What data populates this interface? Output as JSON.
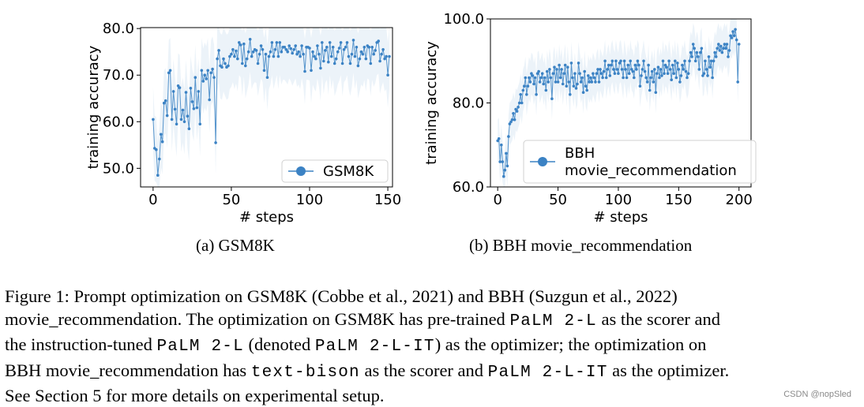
{
  "chart_data": [
    {
      "type": "line",
      "subcaption": "(a) GSM8K",
      "xlabel": "# steps",
      "ylabel": "training accuracy",
      "xlim": [
        -8,
        153
      ],
      "ylim": [
        46.0,
        80.2
      ],
      "xticks": [
        0,
        50,
        100,
        150
      ],
      "yticks": [
        50.0,
        60.0,
        70.0,
        80.0
      ],
      "ytick_labels": [
        "50.0",
        "60.0",
        "70.0",
        "80.0"
      ],
      "legend_location": "lower-right",
      "series": [
        {
          "name": "GSM8K",
          "color": "#3b82c4",
          "band_color": "#c9dcef",
          "band_halfwidth": 7,
          "values": [
            60.5,
            54.3,
            54.0,
            48.5,
            52.0,
            57.3,
            55.7,
            64.0,
            64.5,
            61.3,
            70.5,
            71.0,
            60.5,
            66.5,
            62.7,
            59.5,
            67.7,
            67.3,
            60.5,
            62.5,
            60.0,
            66.3,
            61.2,
            58.5,
            67.2,
            64.3,
            62.8,
            69.5,
            63.0,
            66.5,
            59.5,
            71.0,
            68.7,
            70.0,
            69.2,
            71.0,
            64.7,
            70.5,
            71.3,
            69.5,
            55.5,
            73.5,
            75.3,
            72.0,
            71.7,
            73.5,
            72.5,
            71.7,
            72.0,
            74.0,
            74.5,
            75.5,
            74.0,
            75.2,
            73.5,
            77.0,
            76.5,
            72.5,
            76.7,
            72.0,
            73.5,
            75.0,
            77.7,
            74.0,
            75.0,
            75.5,
            75.3,
            72.5,
            74.5,
            76.3,
            75.5,
            71.0,
            74.5,
            69.5,
            74.0,
            75.0,
            77.0,
            74.0,
            75.5,
            77.0,
            74.0,
            77.0,
            75.0,
            76.0,
            76.0,
            75.5,
            75.0,
            76.3,
            75.7,
            74.7,
            75.5,
            76.3,
            74.5,
            75.0,
            74.0,
            76.3,
            74.5,
            70.8,
            76.0,
            76.0,
            75.8,
            71.0,
            75.0,
            74.0,
            73.5,
            76.3,
            74.5,
            71.5,
            77.0,
            73.0,
            75.3,
            76.0,
            72.8,
            77.0,
            74.0,
            76.0,
            72.5,
            73.5,
            75.0,
            75.8,
            77.0,
            72.5,
            75.5,
            76.0,
            77.0,
            74.0,
            72.5,
            74.5,
            77.5,
            74.0,
            76.0,
            72.0,
            73.5,
            75.0,
            74.5,
            76.0,
            73.5,
            76.3,
            76.0,
            72.5,
            76.0,
            74.5,
            75.3,
            77.0,
            77.3,
            73.0,
            74.5,
            75.5,
            73.5,
            74.0,
            70.0,
            74.0
          ]
        }
      ]
    },
    {
      "type": "line",
      "subcaption": "(b) BBH movie_recommendation",
      "xlabel": "# steps",
      "ylabel": "training accuracy",
      "xlim": [
        -6,
        210
      ],
      "ylim": [
        60.0,
        100.0
      ],
      "xticks": [
        0,
        50,
        100,
        150,
        200
      ],
      "yticks": [
        60.0,
        80.0,
        100.0
      ],
      "ytick_labels": [
        "60.0",
        "80.0",
        "100.0"
      ],
      "legend_location": "lower-right",
      "series": [
        {
          "name": "BBH\nmovie_recommendation",
          "color": "#3b82c4",
          "band_color": "#c9dcef",
          "band_halfwidth": 5,
          "values": [
            71.0,
            71.5,
            66.0,
            70.0,
            66.0,
            62.5,
            64.0,
            68.0,
            65.0,
            72.0,
            75.0,
            75.5,
            76.0,
            77.5,
            76.0,
            78.5,
            78.0,
            79.0,
            80.0,
            82.0,
            80.0,
            83.0,
            84.0,
            86.0,
            82.0,
            84.0,
            86.0,
            85.0,
            87.0,
            86.5,
            84.5,
            86.0,
            82.0,
            87.0,
            87.5,
            85.0,
            86.0,
            87.0,
            84.5,
            86.0,
            83.0,
            87.5,
            85.0,
            88.0,
            86.0,
            81.0,
            87.0,
            88.5,
            85.0,
            88.0,
            85.0,
            89.0,
            86.0,
            88.0,
            84.5,
            87.0,
            89.0,
            84.0,
            88.5,
            85.0,
            82.0,
            89.5,
            86.0,
            84.0,
            87.0,
            83.5,
            84.5,
            89.5,
            87.0,
            85.0,
            86.0,
            82.5,
            87.5,
            84.0,
            83.0,
            86.5,
            85.0,
            86.0,
            85.0,
            87.0,
            86.0,
            85.0,
            87.0,
            88.0,
            85.0,
            88.0,
            87.0,
            86.0,
            87.5,
            90.0,
            86.0,
            88.0,
            89.0,
            86.5,
            89.0,
            90.0,
            88.0,
            87.0,
            90.0,
            88.0,
            87.0,
            89.5,
            90.0,
            88.0,
            86.0,
            90.0,
            88.0,
            86.0,
            89.0,
            87.0,
            90.0,
            88.0,
            87.5,
            86.0,
            89.0,
            88.0,
            90.0,
            89.0,
            84.0,
            86.5,
            88.0,
            90.0,
            87.5,
            86.0,
            85.0,
            89.0,
            83.0,
            86.0,
            87.5,
            85.0,
            88.0,
            82.5,
            87.0,
            88.5,
            86.0,
            88.0,
            86.5,
            90.0,
            87.0,
            89.0,
            88.5,
            87.0,
            90.0,
            88.0,
            85.5,
            89.0,
            87.0,
            90.0,
            86.0,
            89.5,
            88.0,
            85.0,
            86.5,
            89.0,
            88.0,
            90.0,
            87.5,
            86.0,
            87.0,
            90.0,
            92.0,
            91.0,
            94.0,
            93.0,
            90.0,
            92.0,
            91.0,
            88.0,
            92.0,
            93.0,
            86.5,
            87.0,
            90.0,
            88.0,
            86.5,
            91.0,
            88.5,
            90.0,
            86.0,
            90.0,
            92.0,
            91.0,
            93.0,
            94.0,
            92.5,
            93.5,
            92.0,
            93.0,
            94.0,
            93.0,
            94.0,
            91.0,
            92.5,
            96.0,
            95.5,
            97.0,
            96.0,
            97.5,
            95.0,
            85.0,
            94.0
          ]
        }
      ]
    }
  ],
  "captions": {
    "fig_label": "Figure 1:",
    "l1_a": "Prompt optimization on GSM8K (Cobbe et al., 2021) and BBH (Suzgun et al., 2022)",
    "l2_a": "movie_recommendation. The optimization on GSM8K has pre-trained ",
    "l2_m": "PaLM 2-L",
    "l2_b": " as the scorer and",
    "l3_a": "the instruction-tuned ",
    "l3_m1": "PaLM 2-L",
    "l3_b": " (denoted ",
    "l3_m2": "PaLM 2-L-IT",
    "l3_c": ") as the optimizer; the optimization on",
    "l4_a": "BBH movie_recommendation has ",
    "l4_m1": "text-bison",
    "l4_b": " as the scorer and ",
    "l4_m2": "PaLM 2-L-IT",
    "l4_c": " as the optimizer.",
    "l5": "See Section 5 for more details on experimental setup."
  },
  "watermark": "CSDN @nopSled"
}
